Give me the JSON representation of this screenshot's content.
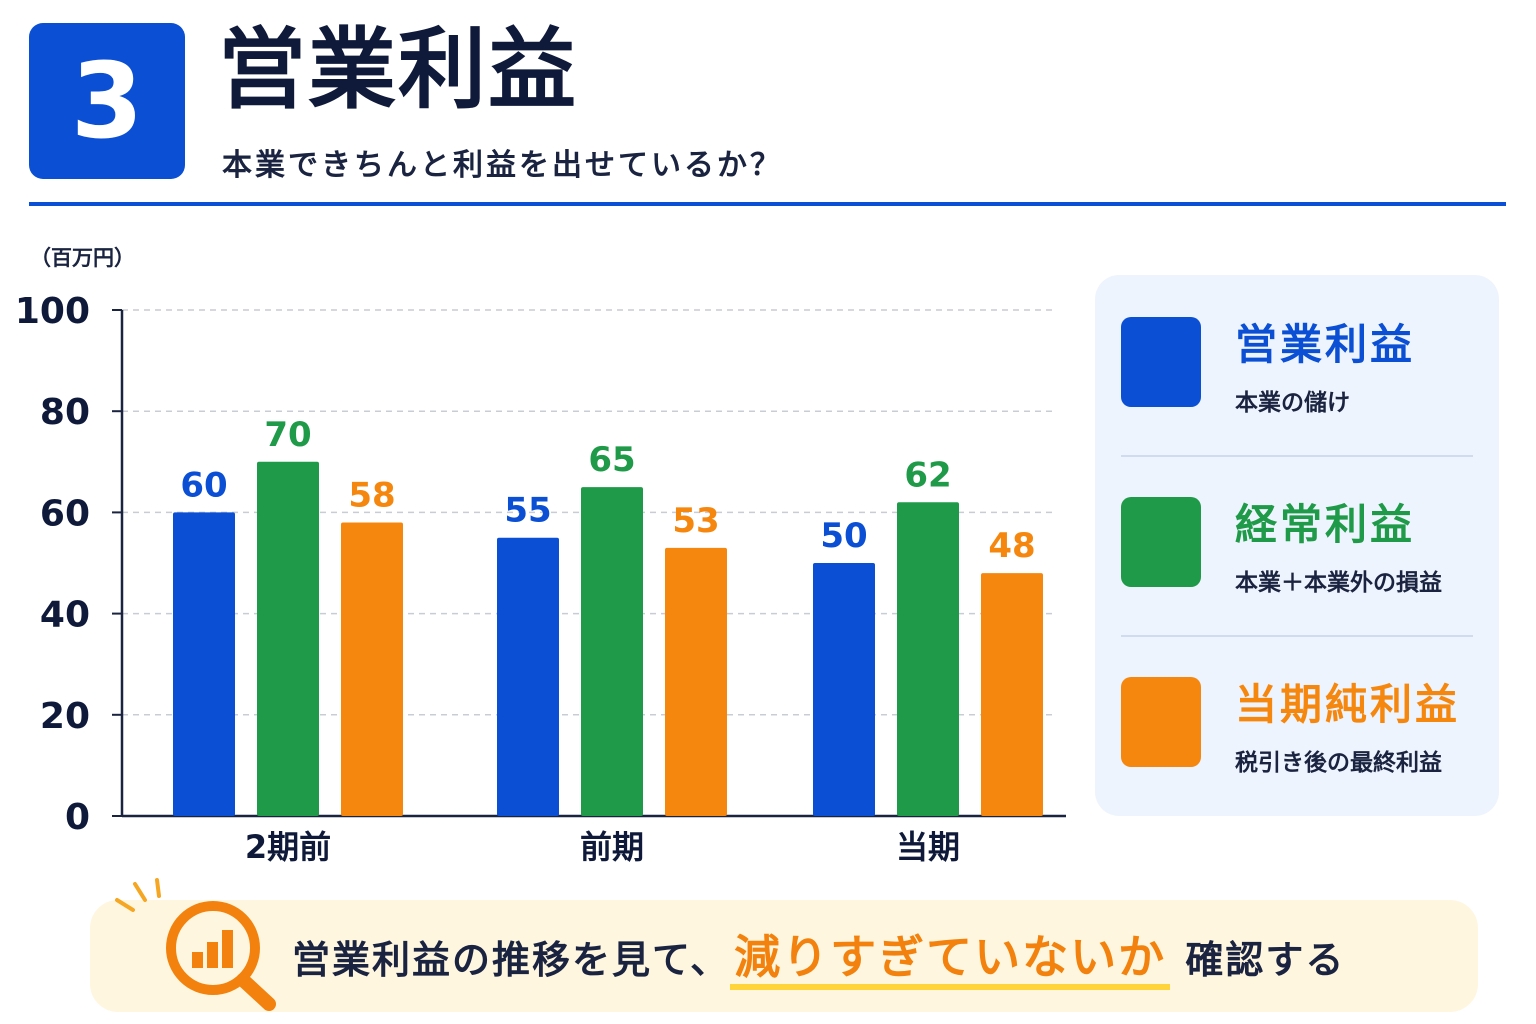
{
  "header": {
    "number": "3",
    "title": "営業利益",
    "subtitle": "本業できちんと利益を出せているか？"
  },
  "chart_data": {
    "type": "bar",
    "unit_label": "（百万円）",
    "categories": [
      "2期前",
      "前期",
      "当期"
    ],
    "series": [
      {
        "name": "営業利益",
        "color": "#0a4fd4",
        "values": [
          60,
          55,
          50
        ]
      },
      {
        "name": "経常利益",
        "color": "#1f9a48",
        "values": [
          70,
          65,
          62
        ]
      },
      {
        "name": "当期純利益",
        "color": "#f5870f",
        "values": [
          58,
          53,
          48
        ]
      }
    ],
    "ylim": [
      0,
      100
    ],
    "yticks": [
      0,
      20,
      40,
      60,
      80,
      100
    ],
    "grid": true,
    "legend_position": "right"
  },
  "legend": [
    {
      "title": "営業利益",
      "desc": "本業の儲け",
      "color": "#0a4fd4"
    },
    {
      "title": "経常利益",
      "desc": "本業＋本業外の損益",
      "color": "#1f9a48"
    },
    {
      "title": "当期純利益",
      "desc": "税引き後の最終利益",
      "color": "#f5870f"
    }
  ],
  "note": {
    "icon": "magnifier-chart-icon",
    "text_before": "営業利益の推移を見て、",
    "highlight": "減りすぎていないか",
    "text_after": "確認する"
  }
}
